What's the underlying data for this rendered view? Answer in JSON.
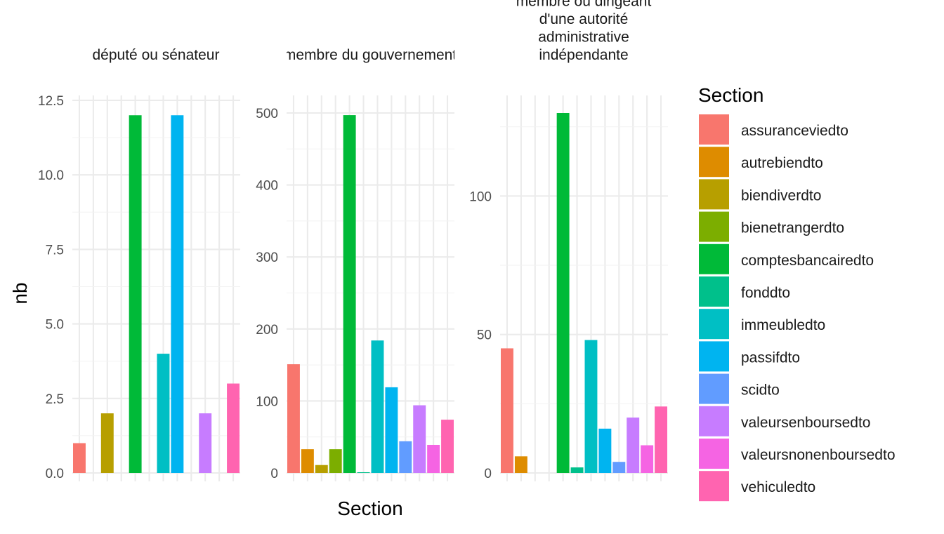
{
  "chart_data": {
    "type": "bar",
    "facet_by": "",
    "xlabel": "Section",
    "ylabel": "nb",
    "legend": {
      "title": "Section",
      "position": "right",
      "items": [
        {
          "label": "assuranceviedto",
          "color": "#F8766D"
        },
        {
          "label": "autrebiendto",
          "color": "#DE8C00"
        },
        {
          "label": "biendiverdto",
          "color": "#B79F00"
        },
        {
          "label": "bienetrangerdto",
          "color": "#7CAE00"
        },
        {
          "label": "comptesbancairedto",
          "color": "#00BA38"
        },
        {
          "label": "fonddto",
          "color": "#00C08B"
        },
        {
          "label": "immeubledto",
          "color": "#00BFC4"
        },
        {
          "label": "passifdto",
          "color": "#00B4F0"
        },
        {
          "label": "scidto",
          "color": "#619CFF"
        },
        {
          "label": "valeursenboursedto",
          "color": "#C77CFF"
        },
        {
          "label": "valeursnonenboursedto",
          "color": "#F564E3"
        },
        {
          "label": "vehiculedto",
          "color": "#FF64B0"
        }
      ]
    },
    "grid": true,
    "panels": [
      {
        "title_lines": [
          "député ou sénateur"
        ],
        "ylim": [
          0,
          12.5
        ],
        "yticks": [
          0,
          2.5,
          5,
          7.5,
          10,
          12.5
        ],
        "ytick_labels": [
          "0.0",
          "2.5",
          "5.0",
          "7.5",
          "10.0",
          "12.5"
        ],
        "values": [
          1,
          null,
          2,
          null,
          12,
          null,
          4,
          12,
          null,
          2,
          null,
          3
        ]
      },
      {
        "title_lines": [
          "membre du gouvernement"
        ],
        "ylim": [
          0,
          500
        ],
        "yticks": [
          0,
          100,
          200,
          300,
          400,
          500
        ],
        "ytick_labels": [
          "0",
          "100",
          "200",
          "300",
          "400",
          "500"
        ],
        "values": [
          151,
          33,
          11,
          33,
          497,
          1,
          184,
          119,
          44,
          94,
          39,
          74
        ]
      },
      {
        "title_lines": [
          "membre ou dirigeant",
          "d'une autorité",
          "administrative",
          "indépendante"
        ],
        "ylim": [
          0,
          130
        ],
        "yticks": [
          0,
          50,
          100
        ],
        "ytick_labels": [
          "0",
          "50",
          "100"
        ],
        "values": [
          45,
          6,
          null,
          null,
          130,
          2,
          48,
          16,
          4,
          20,
          10,
          24
        ]
      }
    ]
  }
}
